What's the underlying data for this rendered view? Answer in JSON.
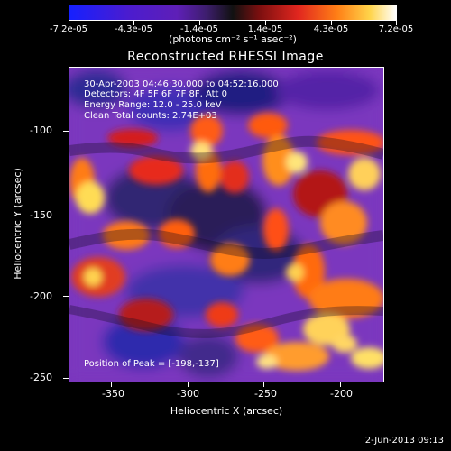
{
  "colorbar": {
    "ticks": [
      "-7.2e-05",
      "-4.3e-05",
      "-1.4e-05",
      "1.4e-05",
      "4.3e-05",
      "7.2e-05"
    ],
    "unit_label": "(photons cm⁻² s⁻¹ asec⁻²)"
  },
  "title": "Reconstructed RHESSI Image",
  "annotations": {
    "time_range": "30-Apr-2003 04:46:30.000 to 04:52:16.000",
    "detectors": "Detectors: 4F 5F 6F 7F 8F, Att 0",
    "energy_range": "Energy Range: 12.0 - 25.0 keV",
    "clean_counts": "Clean    Total counts: 2.74E+03",
    "peak_position": "Position of Peak = [-198,-137]"
  },
  "axes": {
    "xlabel": "Heliocentric X (arcsec)",
    "ylabel": "Heliocentric Y (arcsec)",
    "x_ticks": [
      "-350",
      "-300",
      "-250",
      "-200"
    ],
    "y_ticks": [
      "-100",
      "-150",
      "-200",
      "-250"
    ]
  },
  "footer": {
    "date": "2-Jun-2013 09:13"
  },
  "colors": {
    "background": "#000000",
    "foreground": "#ffffff"
  }
}
